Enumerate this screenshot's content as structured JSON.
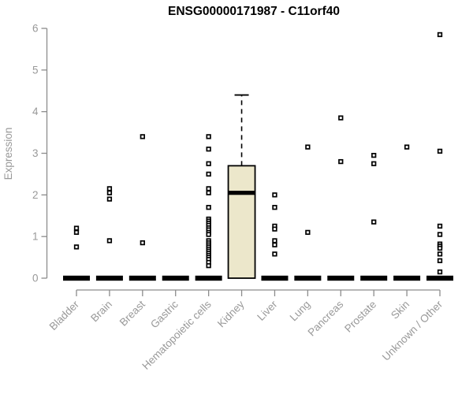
{
  "chart_data": {
    "type": "boxplot",
    "title": "ENSG00000171987 - C11orf40",
    "xlabel": "",
    "ylabel": "Expression",
    "ylim": [
      0,
      6
    ],
    "yticks": [
      0,
      1,
      2,
      3,
      4,
      5,
      6
    ],
    "grid": false,
    "legend": "none",
    "categories": [
      "Bladder",
      "Brain",
      "Breast",
      "Gastric",
      "Hematopoietic cells",
      "Kidney",
      "Liver",
      "Lung",
      "Pancreas",
      "Prostate",
      "Skin",
      "Unknown / Other"
    ],
    "series": [
      {
        "category": "Bladder",
        "box": {
          "q1": 0,
          "median": 0,
          "q3": 0,
          "whisker_low": 0,
          "whisker_high": 0
        },
        "points": [
          1.2,
          1.1,
          0.75
        ]
      },
      {
        "category": "Brain",
        "box": {
          "q1": 0,
          "median": 0,
          "q3": 0,
          "whisker_low": 0,
          "whisker_high": 0
        },
        "points": [
          2.15,
          2.05,
          1.9,
          0.9
        ]
      },
      {
        "category": "Breast",
        "box": {
          "q1": 0,
          "median": 0,
          "q3": 0,
          "whisker_low": 0,
          "whisker_high": 0
        },
        "points": [
          3.4,
          0.85
        ]
      },
      {
        "category": "Gastric",
        "box": {
          "q1": 0,
          "median": 0,
          "q3": 0,
          "whisker_low": 0,
          "whisker_high": 0
        },
        "points": []
      },
      {
        "category": "Hematopoietic cells",
        "box": {
          "q1": 0,
          "median": 0,
          "q3": 0,
          "whisker_low": 0,
          "whisker_high": 0
        },
        "points": [
          3.4,
          3.1,
          2.75,
          2.5,
          2.15,
          2.05,
          1.7,
          1.42,
          1.37,
          1.32,
          1.27,
          1.21,
          1.16,
          1.1,
          1.05,
          0.9,
          0.85,
          0.8,
          0.75,
          0.7,
          0.65,
          0.6,
          0.55,
          0.5,
          0.45,
          0.38,
          0.3
        ]
      },
      {
        "category": "Kidney",
        "box": {
          "q1": 0,
          "median": 2.05,
          "q3": 2.7,
          "whisker_low": 0,
          "whisker_high": 4.4
        },
        "points": []
      },
      {
        "category": "Liver",
        "box": {
          "q1": 0,
          "median": 0,
          "q3": 0,
          "whisker_low": 0,
          "whisker_high": 0
        },
        "points": [
          2.0,
          1.7,
          1.25,
          1.18,
          0.9,
          0.8,
          0.58
        ]
      },
      {
        "category": "Lung",
        "box": {
          "q1": 0,
          "median": 0,
          "q3": 0,
          "whisker_low": 0,
          "whisker_high": 0
        },
        "points": [
          3.15,
          1.1
        ]
      },
      {
        "category": "Pancreas",
        "box": {
          "q1": 0,
          "median": 0,
          "q3": 0,
          "whisker_low": 0,
          "whisker_high": 0
        },
        "points": [
          3.85,
          2.8
        ]
      },
      {
        "category": "Prostate",
        "box": {
          "q1": 0,
          "median": 0,
          "q3": 0,
          "whisker_low": 0,
          "whisker_high": 0
        },
        "points": [
          2.95,
          2.75,
          1.35
        ]
      },
      {
        "category": "Skin",
        "box": {
          "q1": 0,
          "median": 0,
          "q3": 0,
          "whisker_low": 0,
          "whisker_high": 0
        },
        "points": [
          3.15
        ]
      },
      {
        "category": "Unknown / Other",
        "box": {
          "q1": 0,
          "median": 0,
          "q3": 0,
          "whisker_low": 0,
          "whisker_high": 0
        },
        "points": [
          5.85,
          3.05,
          1.25,
          1.05,
          0.82,
          0.77,
          0.72,
          0.58,
          0.42,
          0.15
        ]
      }
    ],
    "colors": {
      "box_fill": "#ece7cb",
      "box_border": "#000000",
      "axis": "#8c8c8c",
      "text": "#999999",
      "title": "#000000",
      "background": "#ffffff"
    }
  }
}
